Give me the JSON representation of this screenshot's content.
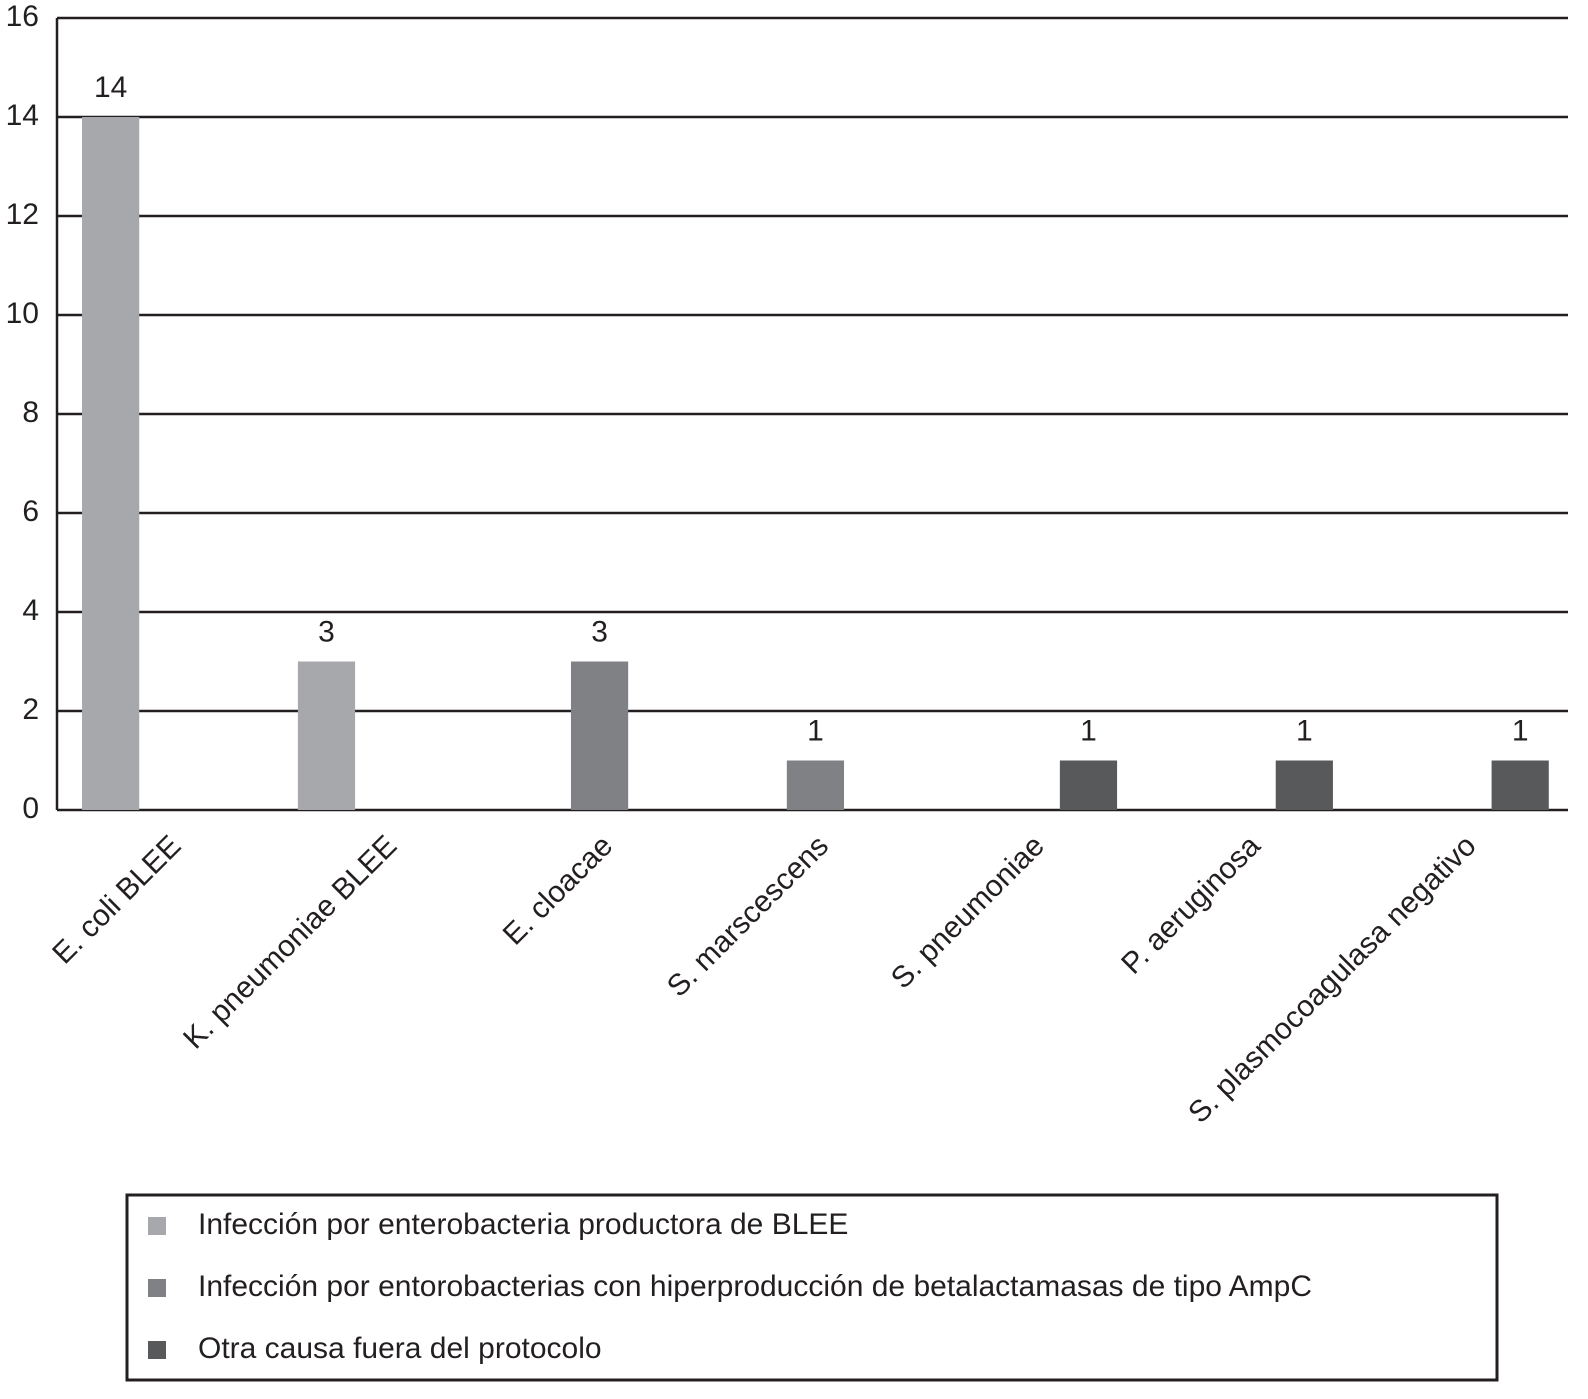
{
  "chart_data": {
    "type": "bar",
    "categories": [
      "E. coli BLEE",
      "K. pneumoniae BLEE",
      "E. cloacae",
      "S. marscescens",
      "S. pneumoniae",
      "P. aeruginosa",
      "S. plasmocoagulasa negativo"
    ],
    "series": [
      {
        "name": "Infección por enterobacteria productora de BLEE",
        "color": "#a7a8ab",
        "values": [
          14,
          3,
          null,
          null,
          null,
          null,
          null
        ]
      },
      {
        "name": "Infección por entorobacterias con hiperproducción de betalactamasas de tipo AmpC",
        "color": "#808184",
        "values": [
          null,
          null,
          3,
          1,
          null,
          null,
          null
        ]
      },
      {
        "name": "Otra causa fuera del protocolo",
        "color": "#58595b",
        "values": [
          null,
          null,
          null,
          null,
          1,
          1,
          1
        ]
      }
    ],
    "ylim": [
      0,
      16
    ],
    "yticks": [
      0,
      2,
      4,
      6,
      8,
      10,
      12,
      14,
      16
    ],
    "grid": true
  }
}
